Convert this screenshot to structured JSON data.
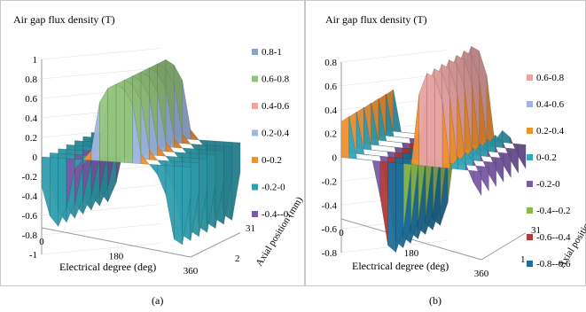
{
  "chart_data": [
    {
      "id": "a",
      "type": "surface3d",
      "title": "Air gap flux density (T)",
      "xlabel": "Electrical degree (deg)",
      "ylabel": "Axial position (mm)",
      "x_ticks": [
        "0",
        "180",
        "360"
      ],
      "y_ticks": [
        "31",
        "2"
      ],
      "z_ticks": [
        "1",
        "0.8",
        "0.6",
        "0.4",
        "0.2",
        "0",
        "-0.2",
        "-0.4",
        "-0.6",
        "-0.8",
        "-1"
      ],
      "zlim": [
        -1,
        1
      ],
      "legend": [
        {
          "label": "0.8-1",
          "color": "#8aa2cf"
        },
        {
          "label": "0.6-0.8",
          "color": "#93c47d"
        },
        {
          "label": "0.4-0.6",
          "color": "#e6a7a7"
        },
        {
          "label": "0.2-0.4",
          "color": "#9fb6e2"
        },
        {
          "label": "0-0.2",
          "color": "#f0912e"
        },
        {
          "label": "-0.2-0",
          "color": "#2f9eae"
        },
        {
          "label": "-0.4--0.",
          "color": "#7a5aa6"
        }
      ],
      "profile_deg": [
        0,
        20,
        40,
        60,
        80,
        100,
        120,
        140,
        160,
        180,
        200,
        220,
        240,
        260,
        280,
        300,
        320,
        340,
        360
      ],
      "profile_T": [
        -0.3,
        -0.6,
        -0.7,
        -0.5,
        -0.1,
        0.0,
        0.1,
        0.6,
        0.75,
        0.8,
        0.75,
        0.6,
        0.1,
        0.0,
        -0.1,
        -0.3,
        -0.75,
        -0.8,
        -0.3
      ]
    },
    {
      "id": "b",
      "type": "surface3d",
      "title": "Air gap flux density (T)",
      "xlabel": "Electrical degree (deg)",
      "ylabel": "Axial position (mm)",
      "x_ticks": [
        "0",
        "180",
        "360"
      ],
      "y_ticks": [
        "31",
        "1"
      ],
      "z_ticks": [
        "0.8",
        "0.6",
        "0.4",
        "0.2",
        "0",
        "-0.2",
        "-0.4",
        "-0.6",
        "-0.8"
      ],
      "zlim": [
        -0.8,
        0.8
      ],
      "legend": [
        {
          "label": "0.6-0.8",
          "color": "#e8a3a3"
        },
        {
          "label": "0.4-0.6",
          "color": "#9fb6e2"
        },
        {
          "label": "0.2-0.4",
          "color": "#f0912e"
        },
        {
          "label": "0-0.2",
          "color": "#33a7bd"
        },
        {
          "label": "-0.2-0",
          "color": "#7a5aa6"
        },
        {
          "label": "-0.4--0.2",
          "color": "#8ab64c"
        },
        {
          "label": "-0.6--0.4",
          "color": "#b03a3a"
        },
        {
          "label": "-0.8--0.6",
          "color": "#1f6f9a"
        }
      ],
      "profile_deg": [
        0,
        20,
        40,
        60,
        80,
        100,
        120,
        140,
        160,
        180,
        200,
        220,
        240,
        260,
        280,
        300,
        320,
        340,
        360
      ],
      "profile_T": [
        0.3,
        0.35,
        0.0,
        0.0,
        0.0,
        -0.3,
        -0.7,
        -0.75,
        -0.55,
        0.0,
        0.6,
        0.78,
        0.75,
        0.55,
        0.0,
        0.1,
        0.05,
        -0.1,
        -0.2
      ]
    }
  ],
  "captions": [
    "(a)",
    "(b)"
  ]
}
